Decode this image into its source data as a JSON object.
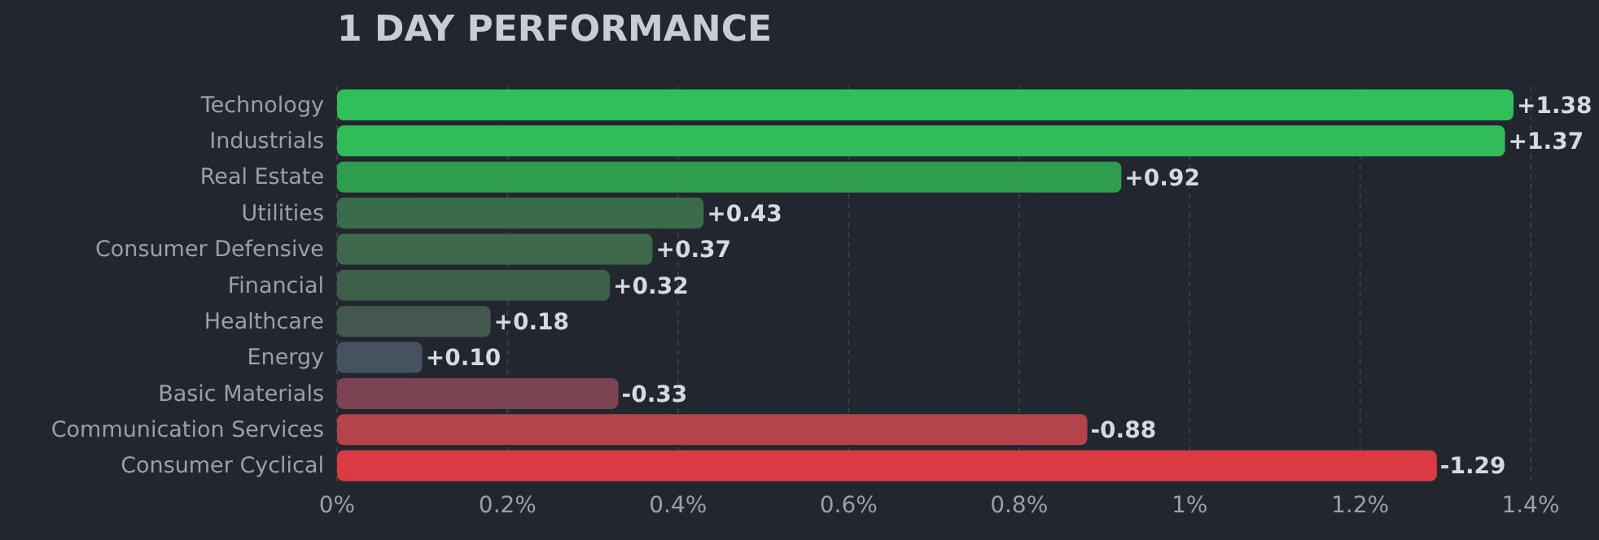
{
  "chart_data": {
    "type": "bar",
    "orientation": "horizontal",
    "title": "1 DAY PERFORMANCE",
    "categories": [
      "Technology",
      "Industrials",
      "Real Estate",
      "Utilities",
      "Consumer Defensive",
      "Financial",
      "Healthcare",
      "Energy",
      "Basic Materials",
      "Communication Services",
      "Consumer Cyclical"
    ],
    "values": [
      1.38,
      1.37,
      0.92,
      0.43,
      0.37,
      0.32,
      0.18,
      0.1,
      0.33,
      0.88,
      1.29
    ],
    "annotations": [
      {
        "text": "+1.38",
        "x": 1.38,
        "y": "Technology"
      },
      {
        "text": "+1.37",
        "x": 1.37,
        "y": "Industrials"
      },
      {
        "text": "+0.92",
        "x": 0.92,
        "y": "Real Estate"
      },
      {
        "text": "+0.43",
        "x": 0.43,
        "y": "Utilities"
      },
      {
        "text": "+0.37",
        "x": 0.37,
        "y": "Consumer Defensive"
      },
      {
        "text": "+0.32",
        "x": 0.32,
        "y": "Financial"
      },
      {
        "text": "+0.18",
        "x": 0.18,
        "y": "Healthcare"
      },
      {
        "text": "+0.10",
        "x": 0.1,
        "y": "Energy"
      },
      {
        "text": "-0.33",
        "x": 0.33,
        "y": "Basic Materials"
      },
      {
        "text": "-0.88",
        "x": 0.88,
        "y": "Communication Services"
      },
      {
        "text": "-1.29",
        "x": 1.29,
        "y": "Consumer Cyclical"
      }
    ],
    "colors": [
      "#30c05a",
      "#30bc58",
      "#2e9e4e",
      "#3a6c4c",
      "#3d684b",
      "#3d5f4a",
      "#44574f",
      "#465260",
      "#7c4452",
      "#b4434b",
      "#dc3a43"
    ],
    "xlim": [
      0,
      1.4
    ],
    "xticks": [
      {
        "value": 0,
        "label": "0%"
      },
      {
        "value": 0.2,
        "label": "0.2%"
      },
      {
        "value": 0.4,
        "label": "0.4%"
      },
      {
        "value": 0.6,
        "label": "0.6%"
      },
      {
        "value": 0.8,
        "label": "0.8%"
      },
      {
        "value": 1,
        "label": "1%"
      },
      {
        "value": 1.2,
        "label": "1.2%"
      },
      {
        "value": 1.4,
        "label": "1.4%"
      }
    ],
    "grid": "x",
    "legend": false
  }
}
